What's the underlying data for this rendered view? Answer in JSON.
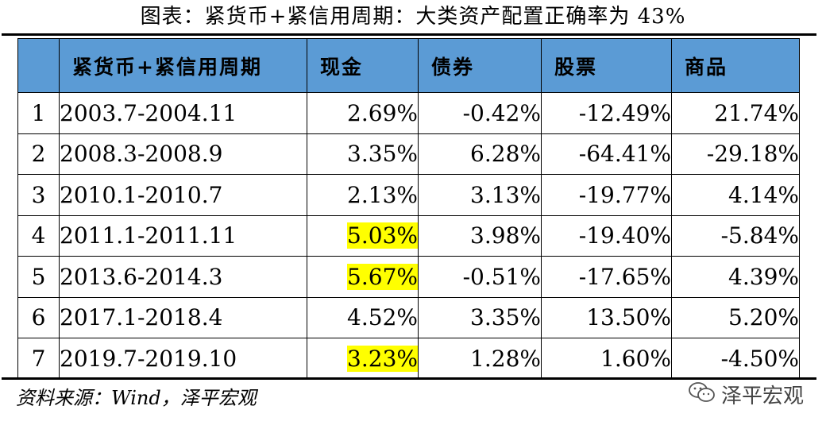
{
  "title": "图表：紧货币+紧信用周期：大类资产配置正确率为 43%",
  "table": {
    "headers": [
      "",
      "紧货币+紧信用周期",
      "现金",
      "债券",
      "股票",
      "商品"
    ],
    "rows": [
      {
        "idx": "1",
        "period": "2003.7-2004.11",
        "cash": "2.69%",
        "bond": "-0.42%",
        "stock": "-12.49%",
        "commodity": "21.74%"
      },
      {
        "idx": "2",
        "period": "2008.3-2008.9",
        "cash": "3.35%",
        "bond": "6.28%",
        "stock": "-64.41%",
        "commodity": "-29.18%"
      },
      {
        "idx": "3",
        "period": "2010.1-2010.7",
        "cash": "2.13%",
        "bond": "3.13%",
        "stock": "-19.77%",
        "commodity": "4.14%"
      },
      {
        "idx": "4",
        "period": "2011.1-2011.11",
        "cash": "5.03%",
        "bond": "3.98%",
        "stock": "-19.40%",
        "commodity": "-5.84%"
      },
      {
        "idx": "5",
        "period": "2013.6-2014.3",
        "cash": "5.67%",
        "bond": "-0.51%",
        "stock": "-17.65%",
        "commodity": "4.39%"
      },
      {
        "idx": "6",
        "period": "2017.1-2018.4",
        "cash": "4.52%",
        "bond": "3.35%",
        "stock": "13.50%",
        "commodity": "5.20%"
      },
      {
        "idx": "7",
        "period": "2019.7-2019.10",
        "cash": "3.23%",
        "bond": "1.28%",
        "stock": "1.60%",
        "commodity": "-4.50%"
      }
    ],
    "highlighted_cash_rows": [
      4,
      5,
      7
    ],
    "highlight_color": "#ffff00",
    "header_color": "#5b9bd5"
  },
  "source": "资料来源：Wind，泽平宏观",
  "brand": {
    "icon": "wechat-icon",
    "name": "泽平宏观"
  }
}
